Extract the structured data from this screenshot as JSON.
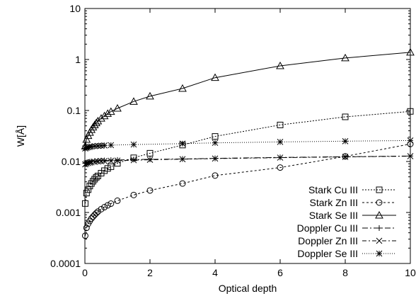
{
  "chart_data": {
    "type": "line",
    "xlabel": "Optical depth",
    "ylabel": "W[Å]",
    "xlim": [
      0,
      10
    ],
    "ylim": [
      0.0001,
      10
    ],
    "y_scale": "log",
    "grid": false,
    "legend_position": "lower-right",
    "x_ticks": [
      {
        "value": 0,
        "label": "0"
      },
      {
        "value": 2,
        "label": "2"
      },
      {
        "value": 4,
        "label": "4"
      },
      {
        "value": 6,
        "label": "6"
      },
      {
        "value": 8,
        "label": "8"
      },
      {
        "value": 10,
        "label": "10"
      }
    ],
    "y_ticks": [
      {
        "value": 0.0001,
        "label": "0.0001"
      },
      {
        "value": 0.001,
        "label": "0.001"
      },
      {
        "value": 0.01,
        "label": "0.01"
      },
      {
        "value": 0.1,
        "label": "0.1"
      },
      {
        "value": 1,
        "label": "1"
      },
      {
        "value": 10,
        "label": "10"
      }
    ],
    "series": [
      {
        "name": "Stark Cu III",
        "marker": "square",
        "dash": "2,2",
        "x": [
          0.01,
          0.05,
          0.1,
          0.15,
          0.2,
          0.25,
          0.3,
          0.35,
          0.4,
          0.5,
          0.6,
          0.7,
          0.8,
          1.0,
          1.5,
          2.0,
          3.0,
          4.0,
          6.0,
          8.0,
          10.0
        ],
        "y": [
          0.0015,
          0.0024,
          0.0028,
          0.0033,
          0.0037,
          0.0041,
          0.0045,
          0.0049,
          0.0052,
          0.0059,
          0.0066,
          0.0073,
          0.0079,
          0.0092,
          0.0118,
          0.0145,
          0.021,
          0.031,
          0.052,
          0.075,
          0.096
        ]
      },
      {
        "name": "Stark Zn III",
        "marker": "circle",
        "dash": "3,3",
        "x": [
          0.01,
          0.05,
          0.1,
          0.15,
          0.2,
          0.25,
          0.3,
          0.35,
          0.4,
          0.5,
          0.6,
          0.7,
          0.8,
          1.0,
          1.5,
          2.0,
          3.0,
          4.0,
          6.0,
          8.0,
          10.0
        ],
        "y": [
          0.00035,
          0.0005,
          0.0006,
          0.00068,
          0.00076,
          0.00083,
          0.0009,
          0.00097,
          0.00104,
          0.00116,
          0.00127,
          0.00138,
          0.00149,
          0.0017,
          0.0022,
          0.0027,
          0.0037,
          0.0053,
          0.0076,
          0.0126,
          0.022
        ]
      },
      {
        "name": "Stark Se III",
        "marker": "triangle",
        "dash": "",
        "x": [
          0.01,
          0.05,
          0.1,
          0.15,
          0.2,
          0.25,
          0.3,
          0.35,
          0.4,
          0.5,
          0.6,
          0.7,
          0.8,
          1.0,
          1.5,
          2.0,
          3.0,
          4.0,
          6.0,
          8.0,
          10.0
        ],
        "y": [
          0.02,
          0.027,
          0.032,
          0.037,
          0.042,
          0.047,
          0.052,
          0.057,
          0.062,
          0.07,
          0.078,
          0.087,
          0.095,
          0.11,
          0.15,
          0.19,
          0.27,
          0.44,
          0.75,
          1.07,
          1.38
        ]
      },
      {
        "name": "Doppler Cu III",
        "marker": "plus",
        "dash": "8,3,2,3",
        "x": [
          0.01,
          0.05,
          0.1,
          0.15,
          0.2,
          0.3,
          0.4,
          0.5,
          0.6,
          0.8,
          1.0,
          1.5,
          2.0,
          3.0,
          4.0,
          6.0,
          8.0,
          10.0
        ],
        "y": [
          0.0092,
          0.0095,
          0.0097,
          0.0099,
          0.01,
          0.0102,
          0.0103,
          0.0104,
          0.0105,
          0.0106,
          0.0107,
          0.0109,
          0.011,
          0.0112,
          0.0115,
          0.012,
          0.0124,
          0.0128
        ]
      },
      {
        "name": "Doppler Zn III",
        "marker": "cross",
        "dash": "6,3,2,3",
        "x": [
          0.01,
          0.05,
          0.1,
          0.15,
          0.2,
          0.3,
          0.4,
          0.5,
          0.6,
          0.8,
          1.0,
          1.5,
          2.0,
          3.0,
          4.0,
          6.0,
          8.0,
          10.0
        ],
        "y": [
          0.0088,
          0.0091,
          0.0093,
          0.0095,
          0.0096,
          0.0098,
          0.01,
          0.0101,
          0.0102,
          0.0103,
          0.0104,
          0.0106,
          0.0108,
          0.0111,
          0.0114,
          0.0119,
          0.0123,
          0.0127
        ]
      },
      {
        "name": "Doppler Se III",
        "marker": "star",
        "dash": "1,2",
        "x": [
          0.01,
          0.05,
          0.1,
          0.15,
          0.2,
          0.3,
          0.4,
          0.5,
          0.6,
          0.8,
          1.5,
          3.0,
          4.0,
          6.0,
          8.0,
          10.0
        ],
        "y": [
          0.018,
          0.0185,
          0.019,
          0.0193,
          0.0196,
          0.02,
          0.0202,
          0.0204,
          0.0206,
          0.0209,
          0.0215,
          0.0224,
          0.0232,
          0.0242,
          0.025,
          0.0258
        ]
      }
    ]
  }
}
